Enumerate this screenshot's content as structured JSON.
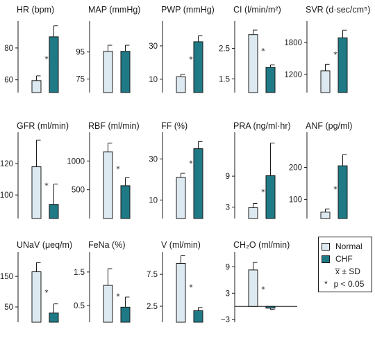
{
  "colors": {
    "normal": "#dde9f0",
    "chf": "#1f7a86",
    "axis": "#1a1a1a"
  },
  "legend": {
    "normal_label": "Normal",
    "chf_label": "CHF",
    "stat_label": "x̅ ± SD",
    "sig_label": "p < 0.05",
    "sig_symbol": "*"
  },
  "chart_data": [
    {
      "type": "bar",
      "title": "HR (bpm)",
      "categories": [
        "Normal",
        "CHF"
      ],
      "values": [
        59.5,
        87
      ],
      "sd": [
        3,
        7
      ],
      "ylim": [
        52,
        97
      ],
      "ticks": [
        60,
        80
      ],
      "tick_labels": [
        "60",
        "80"
      ],
      "significant": true
    },
    {
      "type": "bar",
      "title": "MAP (mmHg)",
      "categories": [
        "Normal",
        "CHF"
      ],
      "values": [
        95.5,
        95.5
      ],
      "sd": [
        4.5,
        4.5
      ],
      "ylim": [
        65,
        118
      ],
      "ticks": [
        75,
        95
      ],
      "tick_labels": [
        "75",
        "95"
      ],
      "significant": false
    },
    {
      "type": "bar",
      "title": "PWP (mmHg)",
      "categories": [
        "Normal",
        "CHF"
      ],
      "values": [
        11.5,
        32.5
      ],
      "sd": [
        1.5,
        3.5
      ],
      "ylim": [
        2,
        45
      ],
      "ticks": [
        10,
        30
      ],
      "tick_labels": [
        "10",
        "30"
      ],
      "significant": true
    },
    {
      "type": "bar",
      "title": "CI (l/min/m²)",
      "categories": [
        "Normal",
        "CHF"
      ],
      "values": [
        2.95,
        1.88
      ],
      "sd": [
        0.15,
        0.08
      ],
      "ylim": [
        1.05,
        3.4
      ],
      "ticks": [
        1.5,
        2.5
      ],
      "tick_labels": [
        "1.5",
        "2.5"
      ],
      "significant": true
    },
    {
      "type": "bar",
      "title": "SVR (d·sec/cm⁵)",
      "categories": [
        "Normal",
        "CHF"
      ],
      "values": [
        1265,
        1890
      ],
      "sd": [
        125,
        145
      ],
      "ylim": [
        855,
        2210
      ],
      "ticks": [
        1200,
        1800
      ],
      "tick_labels": [
        "1200",
        "1800"
      ],
      "significant": true
    },
    {
      "type": "bar",
      "title": "GFR (ml/min)",
      "categories": [
        "Normal",
        "CHF"
      ],
      "values": [
        118,
        94
      ],
      "sd": [
        17,
        13
      ],
      "ylim": [
        85,
        140
      ],
      "ticks": [
        100,
        120
      ],
      "tick_labels": [
        "100",
        "120"
      ],
      "significant": true
    },
    {
      "type": "bar",
      "title": "RBF (ml/min)",
      "categories": [
        "Normal",
        "CHF"
      ],
      "values": [
        1160,
        570
      ],
      "sd": [
        150,
        140
      ],
      "ylim": [
        0,
        1500
      ],
      "ticks": [
        500,
        1000
      ],
      "tick_labels": [
        "500",
        "1000"
      ],
      "significant": true
    },
    {
      "type": "bar",
      "title": "FF (%)",
      "categories": [
        "Normal",
        "CHF"
      ],
      "values": [
        21,
        35
      ],
      "sd": [
        2,
        3.5
      ],
      "ylim": [
        1,
        43
      ],
      "ticks": [
        10,
        30
      ],
      "tick_labels": [
        "10",
        "30"
      ],
      "significant": true
    },
    {
      "type": "bar",
      "title": "PRA (ng/ml·hr)",
      "categories": [
        "Normal",
        "CHF"
      ],
      "values": [
        2.9,
        9.1
      ],
      "sd": [
        0.8,
        6.3
      ],
      "ylim": [
        0.8,
        17.5
      ],
      "ticks": [
        3,
        9
      ],
      "tick_labels": [
        "3",
        "9"
      ],
      "significant": true
    },
    {
      "type": "bar",
      "title": "ANF (pg/ml)",
      "categories": [
        "Normal",
        "CHF"
      ],
      "values": [
        60,
        205
      ],
      "sd": [
        10,
        35
      ],
      "ylim": [
        40,
        310
      ],
      "ticks": [
        100,
        200
      ],
      "tick_labels": [
        "100",
        "200"
      ],
      "significant": true
    },
    {
      "type": "bar",
      "title": "UNaV (μeq/m)",
      "categories": [
        "Normal",
        "CHF"
      ],
      "values": [
        165,
        30
      ],
      "sd": [
        30,
        30
      ],
      "ylim": [
        0,
        230
      ],
      "ticks": [
        50,
        150
      ],
      "tick_labels": [
        "50",
        "150"
      ],
      "significant": true
    },
    {
      "type": "bar",
      "title": "FeNa (%)",
      "categories": [
        "Normal",
        "CHF"
      ],
      "values": [
        1.1,
        0.45
      ],
      "sd": [
        0.5,
        0.3
      ],
      "ylim": [
        0,
        2.1
      ],
      "ticks": [
        0.5,
        1.5
      ],
      "tick_labels": [
        "0.5",
        "1.5"
      ],
      "significant": true
    },
    {
      "type": "bar",
      "title": "V (ml/min)",
      "categories": [
        "Normal",
        "CHF"
      ],
      "values": [
        9.2,
        1.8
      ],
      "sd": [
        1.2,
        0.5
      ],
      "ylim": [
        0,
        11
      ],
      "ticks": [
        2.5,
        7.5
      ],
      "tick_labels": [
        "2.5",
        "7.5"
      ],
      "significant": true
    },
    {
      "type": "bar",
      "title": "CH₂O (ml/min)",
      "categories": [
        "Normal",
        "CHF"
      ],
      "values": [
        8.3,
        -0.4
      ],
      "sd": [
        1.7,
        0.3
      ],
      "ylim": [
        -3.6,
        12.4
      ],
      "ticks": [
        -3,
        3,
        9
      ],
      "tick_labels": [
        "−3",
        "3",
        "9"
      ],
      "significant": true
    }
  ]
}
